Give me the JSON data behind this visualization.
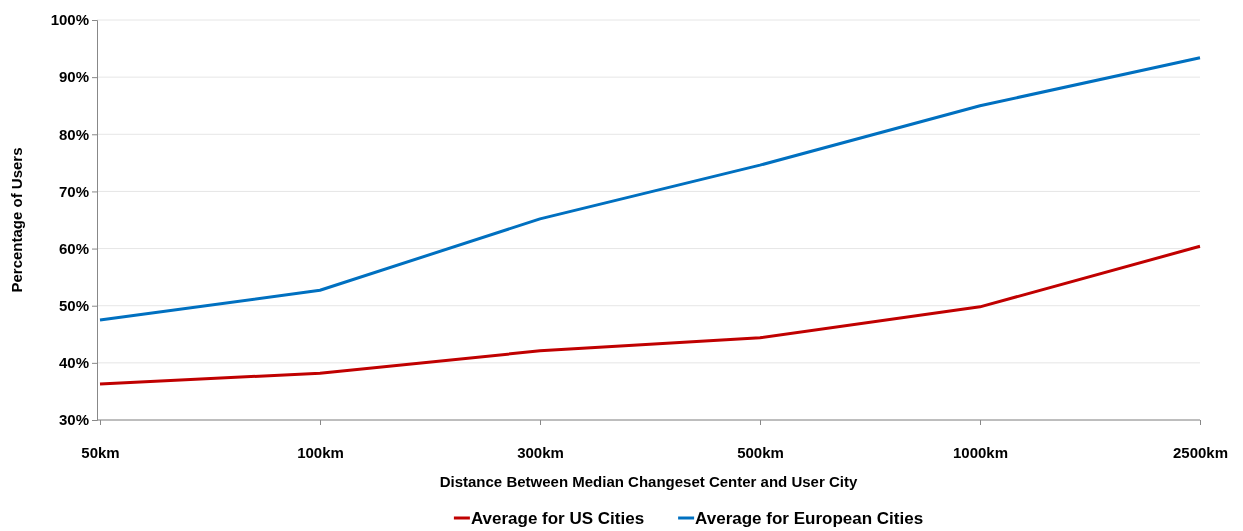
{
  "chart_data": {
    "type": "line",
    "xlabel": "Distance Between Median Changeset Center and User City",
    "ylabel": "Percentage of Users",
    "categories": [
      "50km",
      "100km",
      "300km",
      "500km",
      "1000km",
      "2500km"
    ],
    "series": [
      {
        "name": "Average for US Cities",
        "color": "#c00000",
        "values": [
          36.3,
          38.2,
          42.1,
          44.4,
          49.8,
          60.4
        ]
      },
      {
        "name": "Average for European Cities",
        "color": "#0070c0",
        "values": [
          47.5,
          52.7,
          65.2,
          74.6,
          85,
          93.4
        ]
      }
    ],
    "ylim": [
      30,
      100
    ],
    "yticks": [
      {
        "value": 30,
        "label": "30%"
      },
      {
        "value": 40,
        "label": "40%"
      },
      {
        "value": 50,
        "label": "50%"
      },
      {
        "value": 60,
        "label": "60%"
      },
      {
        "value": 70,
        "label": "70%"
      },
      {
        "value": 80,
        "label": "80%"
      },
      {
        "value": 90,
        "label": "90%"
      },
      {
        "value": 100,
        "label": "100%"
      }
    ],
    "grid": "y",
    "legend": "bottom",
    "marker": "none",
    "line_style": "solid"
  }
}
